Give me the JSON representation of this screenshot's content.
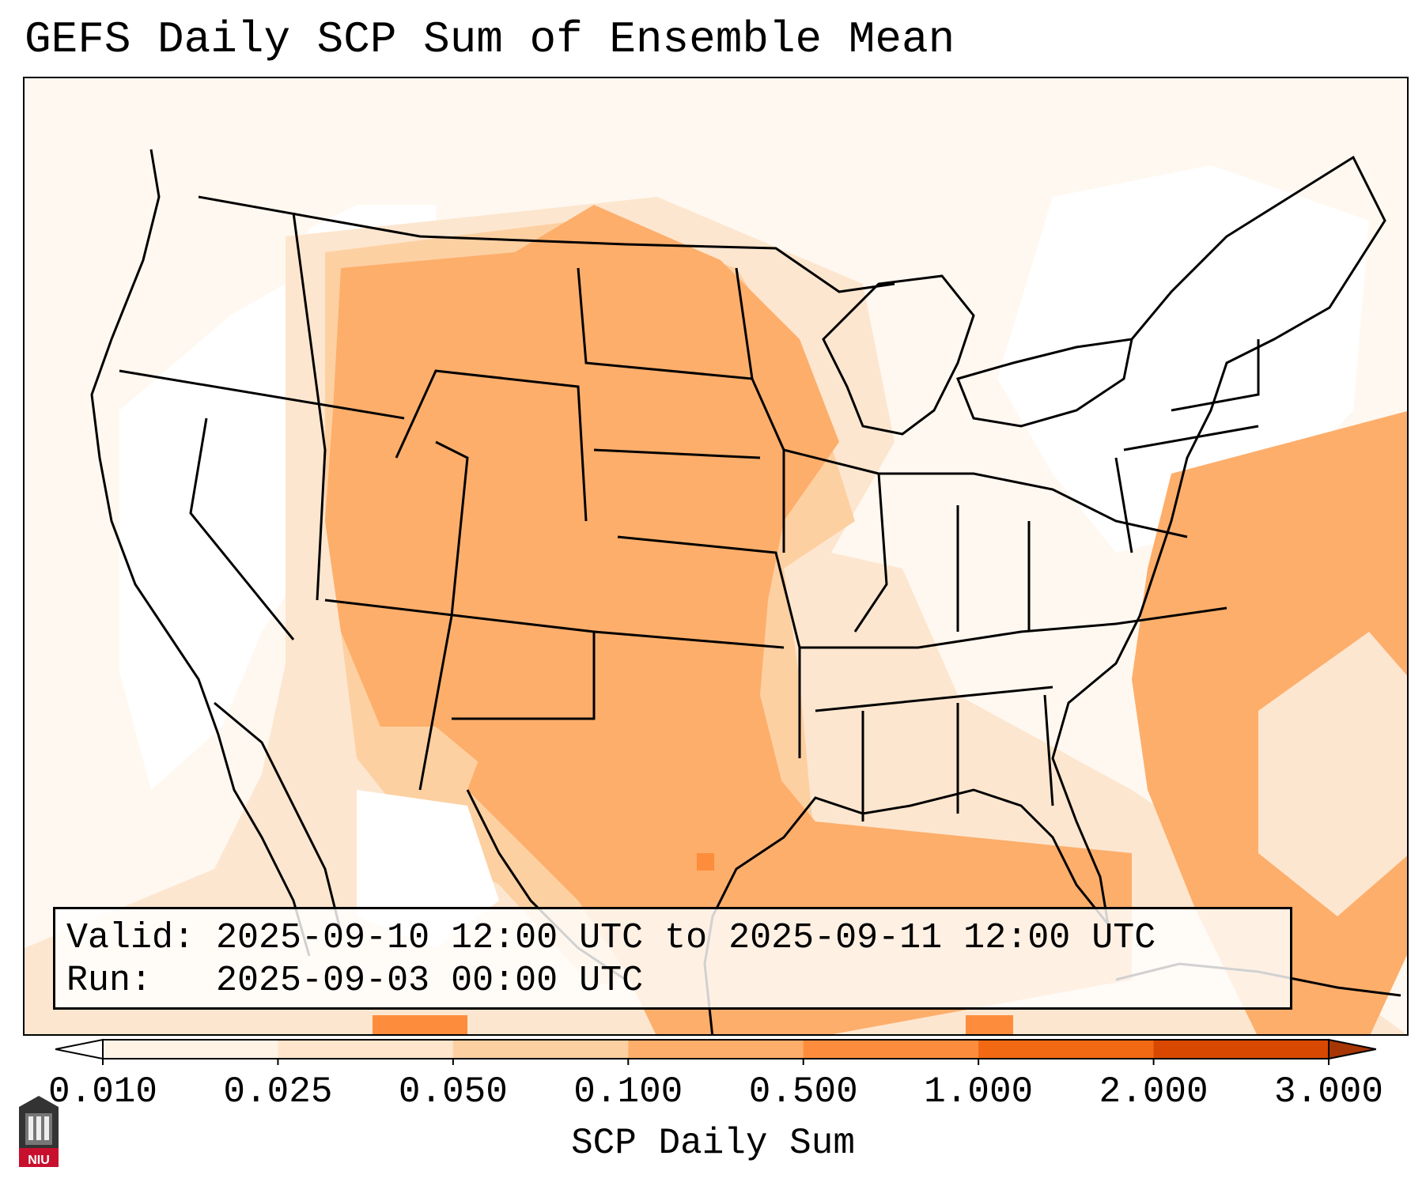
{
  "title": "GEFS Daily SCP Sum of Ensemble Mean",
  "info": {
    "valid": "Valid: 2025-09-10 12:00 UTC to 2025-09-11 12:00 UTC",
    "run": "Run:   2025-09-03 00:00 UTC"
  },
  "colorbar": {
    "label": "SCP Daily Sum",
    "ticks": [
      "0.010",
      "0.025",
      "0.050",
      "0.100",
      "0.500",
      "1.000",
      "2.000",
      "3.000"
    ],
    "colors": [
      "#fff3e6",
      "#fee5cc",
      "#fdd0a2",
      "#fdae6b",
      "#fd8d3c",
      "#f16913",
      "#d94801"
    ],
    "extend_colors": {
      "under": "#ffffff",
      "over": "#a63603"
    }
  },
  "logo": {
    "text": "NIU",
    "color": "#c8102e"
  },
  "map": {
    "projection": "Lambert conformal, CONUS",
    "land_outline_color": "#000000",
    "field": "SCP daily sum, ensemble mean"
  }
}
